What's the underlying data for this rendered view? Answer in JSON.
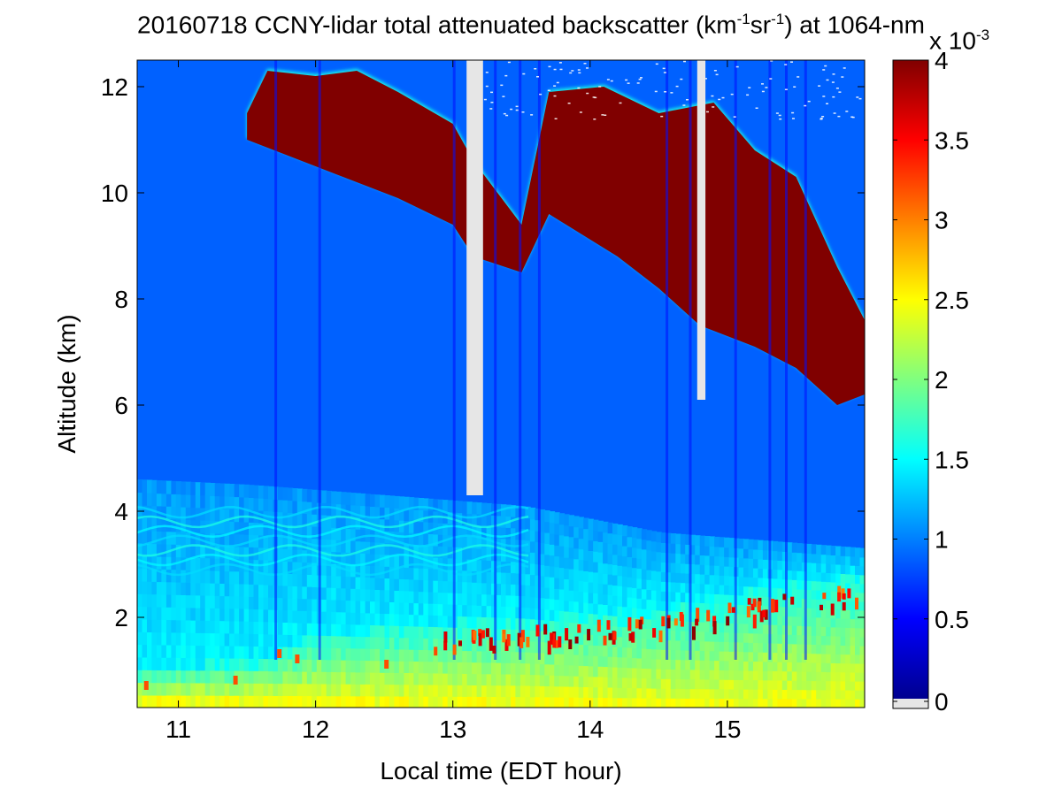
{
  "chart_data": {
    "type": "heatmap",
    "title": {
      "prefix": "20160718 CCNY-lidar total attenuated backscatter (km",
      "sup1": "-1",
      "mid": "sr",
      "sup2": "-1",
      "suffix": ") at 1064-nm"
    },
    "xlabel": "Local time (EDT hour)",
    "ylabel": "Altitude (km)",
    "xlim": [
      10.7,
      16.0
    ],
    "ylim": [
      0.3,
      12.5
    ],
    "xticks": [
      11,
      12,
      13,
      14,
      15
    ],
    "yticks": [
      2,
      4,
      6,
      8,
      10,
      12
    ],
    "colorbar": {
      "colormap": "jet",
      "clim": [
        0,
        4
      ],
      "ticks": [
        0,
        0.5,
        1,
        1.5,
        2,
        2.5,
        3,
        3.5,
        4
      ],
      "multiplier_base": "x 10",
      "multiplier_exp": "-3",
      "missing_color": "#e6e6e6"
    },
    "features": {
      "cirrus_top_km": [
        [
          11.5,
          11.5
        ],
        [
          11.65,
          12.3
        ],
        [
          12.0,
          12.2
        ],
        [
          12.3,
          12.3
        ],
        [
          12.6,
          11.9
        ],
        [
          13.0,
          11.3
        ],
        [
          13.15,
          10.6
        ],
        [
          13.5,
          9.4
        ],
        [
          13.7,
          11.9
        ],
        [
          14.1,
          12.0
        ],
        [
          14.5,
          11.5
        ],
        [
          14.9,
          11.7
        ],
        [
          15.2,
          10.8
        ],
        [
          15.5,
          10.3
        ],
        [
          15.8,
          8.6
        ],
        [
          16.0,
          7.6
        ]
      ],
      "cirrus_base_km": [
        [
          11.5,
          11.0
        ],
        [
          11.8,
          10.7
        ],
        [
          12.2,
          10.3
        ],
        [
          12.6,
          9.9
        ],
        [
          13.0,
          9.4
        ],
        [
          13.15,
          8.8
        ],
        [
          13.5,
          8.5
        ],
        [
          13.7,
          9.6
        ],
        [
          14.2,
          8.8
        ],
        [
          14.5,
          8.2
        ],
        [
          14.8,
          7.5
        ],
        [
          15.2,
          7.1
        ],
        [
          15.5,
          6.7
        ],
        [
          15.8,
          6.0
        ],
        [
          16.0,
          6.2
        ]
      ],
      "aerosol_layer_km": [
        [
          10.7,
          4.3
        ],
        [
          11.5,
          4.2
        ],
        [
          12.5,
          4.0
        ],
        [
          13.5,
          3.8
        ],
        [
          14.5,
          3.3
        ],
        [
          15.5,
          3.1
        ],
        [
          16.0,
          3.0
        ]
      ],
      "boundary_layer_top_km": [
        [
          10.7,
          0.9
        ],
        [
          11.6,
          1.1
        ],
        [
          12.0,
          1.6
        ],
        [
          12.9,
          1.8
        ],
        [
          13.5,
          1.9
        ],
        [
          14.5,
          2.1
        ],
        [
          15.5,
          2.6
        ],
        [
          16.0,
          2.7
        ]
      ],
      "missing_data_gaps": [
        {
          "t0": 13.1,
          "t1": 13.22,
          "alt0": 4.3,
          "alt1": 12.5
        },
        {
          "t0": 14.78,
          "t1": 14.84,
          "alt0": 6.1,
          "alt1": 12.5
        }
      ]
    }
  }
}
